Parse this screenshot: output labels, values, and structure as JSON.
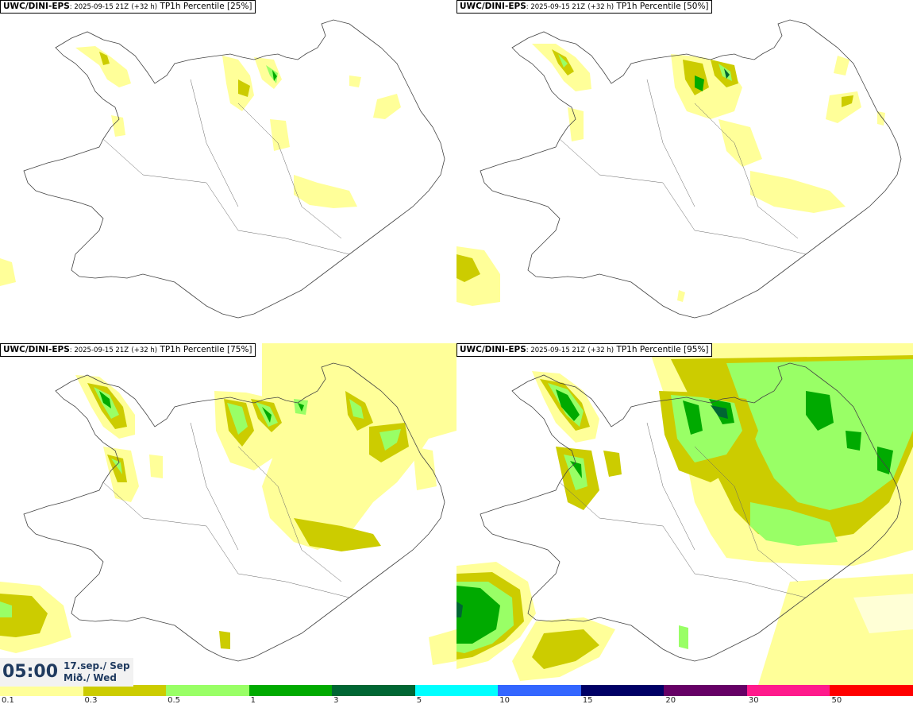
{
  "panels": [
    {
      "model": "UWC/DINI-EPS",
      "run": ": 2025-09-15 21Z",
      "lead": "(+32 h)",
      "product": "TP1h Percentile [25%]"
    },
    {
      "model": "UWC/DINI-EPS",
      "run": ": 2025-09-15 21Z",
      "lead": "(+32 h)",
      "product": "TP1h Percentile [50%]"
    },
    {
      "model": "UWC/DINI-EPS",
      "run": ": 2025-09-15 21Z",
      "lead": "(+32 h)",
      "product": "TP1h Percentile [75%]"
    },
    {
      "model": "UWC/DINI-EPS",
      "run": ": 2025-09-15 21Z",
      "lead": "(+32 h)",
      "product": "TP1h Percentile [95%]"
    }
  ],
  "valid_time": {
    "time": "05:00",
    "date_line1": "17.sep./ Sep",
    "date_line2": "Mið./ Wed"
  },
  "colorbar": {
    "colors": [
      "#ffff99",
      "#cccc00",
      "#99ff66",
      "#00aa00",
      "#006633",
      "#00ffff",
      "#3366ff",
      "#000066",
      "#660066",
      "#ff1a8c",
      "#ff0000"
    ],
    "labels": [
      "0.1",
      "0.3",
      "0.5",
      "1",
      "3",
      "5",
      "10",
      "15",
      "20",
      "30",
      "50"
    ]
  },
  "map_colors": {
    "light": "#ffff99",
    "mid": "#cccc00",
    "green": "#99ff66",
    "dark": "#00aa00",
    "coast": "#444444"
  }
}
